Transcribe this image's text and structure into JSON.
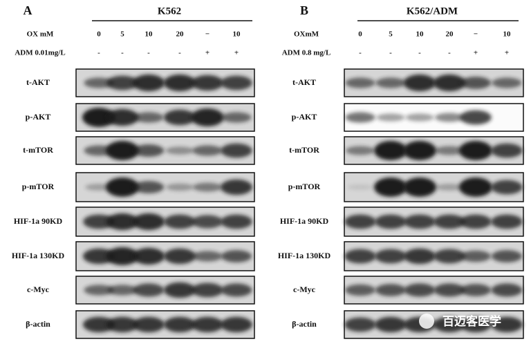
{
  "panels": [
    {
      "letter": "A",
      "title": "K562",
      "conditions": [
        {
          "label": "OX mM",
          "values": [
            "0",
            "5",
            "10",
            "20",
            "−",
            "10"
          ]
        },
        {
          "label": "ADM 0.01mg/L",
          "values": [
            "-",
            "-",
            "-",
            "-",
            "+",
            "+"
          ]
        }
      ],
      "blots": [
        "t-AKT",
        "p-AKT",
        "t-mTOR",
        "p-mTOR",
        "HIF-1a  90KD",
        "HIF-1a  130KD",
        "c-Myc",
        "β-actin"
      ]
    },
    {
      "letter": "B",
      "title": "K562/ADM",
      "conditions": [
        {
          "label": "OXmM",
          "values": [
            "0",
            "5",
            "10",
            "20",
            "−",
            "10"
          ]
        },
        {
          "label": "ADM 0.8 mg/L",
          "values": [
            "-",
            "-",
            "-",
            "-",
            "+",
            "+"
          ]
        }
      ],
      "blots": [
        "t-AKT",
        "p-AKT",
        "t-mTOR",
        "p-mTOR",
        "HIF-1a  90KD",
        "HIF-1a  130KD",
        "c-Myc",
        "β-actin"
      ]
    }
  ],
  "watermark": "百迈客医学"
}
